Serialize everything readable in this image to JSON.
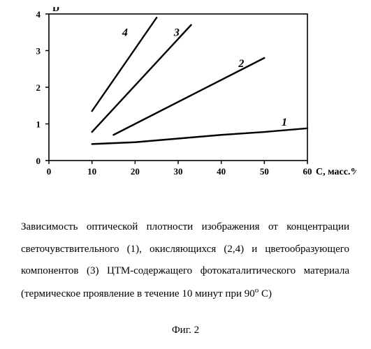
{
  "chart": {
    "type": "line",
    "ylabel": "D",
    "xlabel": "С, масс.%",
    "xlim": [
      0,
      60
    ],
    "ylim": [
      0,
      4
    ],
    "xtick_step": 10,
    "ytick_step": 1,
    "axis_color": "#000000",
    "background_color": "#ffffff",
    "line_color": "#000000",
    "line_width": 2.4,
    "tick_fontsize": 13,
    "label_fontsize": 14,
    "series": {
      "1": {
        "label": "1",
        "points": [
          [
            10,
            0.45
          ],
          [
            20,
            0.5
          ],
          [
            30,
            0.6
          ],
          [
            40,
            0.7
          ],
          [
            50,
            0.78
          ],
          [
            60,
            0.88
          ]
        ]
      },
      "2": {
        "label": "2",
        "points": [
          [
            15,
            0.7
          ],
          [
            50,
            2.8
          ]
        ]
      },
      "3": {
        "label": "3",
        "points": [
          [
            10,
            0.78
          ],
          [
            33,
            3.7
          ]
        ]
      },
      "4": {
        "label": "4",
        "points": [
          [
            10,
            1.35
          ],
          [
            25,
            3.9
          ]
        ]
      }
    },
    "series_label_fontsize": 16,
    "series_label_weight": "bold"
  },
  "caption": {
    "text": "Зависимость оптической плотности изображения от концентрации светочувствительного (1), окисляющихся (2,4) и цветообразующего компонентов (3) ЦТМ-содержащего фотокаталитического материала (термическое проявление в течение 10 минут при 90",
    "text_tail": " С)",
    "superscript": "о"
  },
  "figure_label": "Фиг. 2"
}
